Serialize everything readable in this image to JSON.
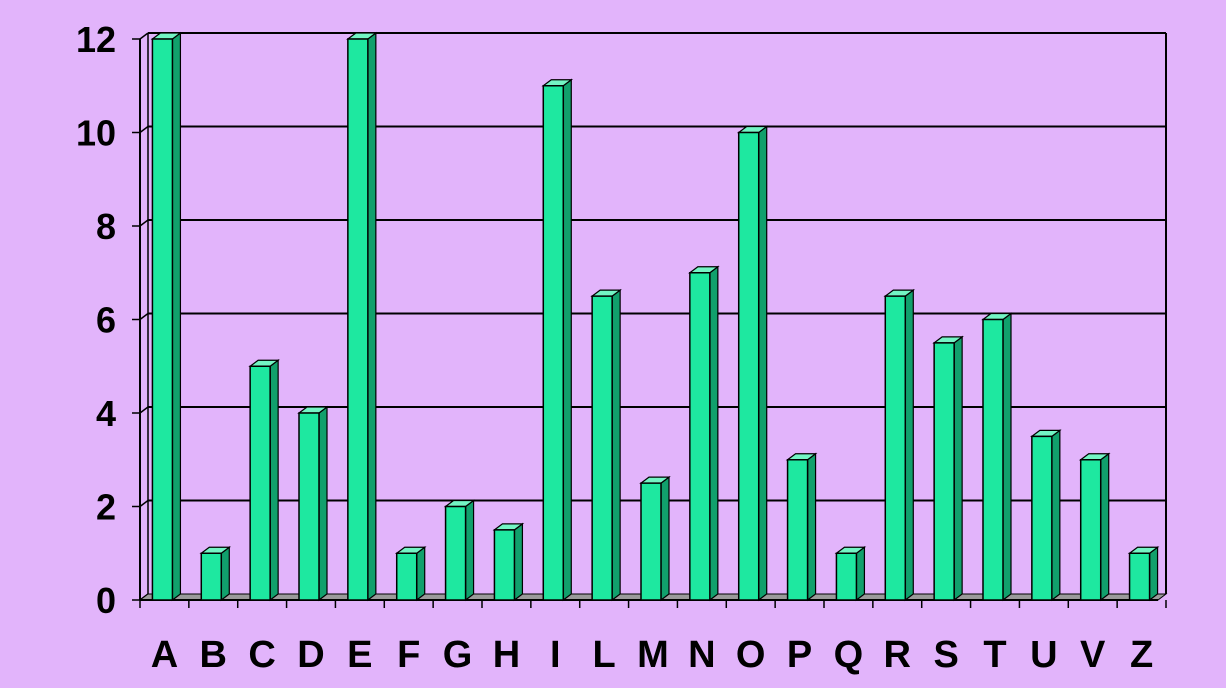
{
  "chart_data": {
    "type": "bar",
    "categories": [
      "A",
      "B",
      "C",
      "D",
      "E",
      "F",
      "G",
      "H",
      "I",
      "L",
      "M",
      "N",
      "O",
      "P",
      "Q",
      "R",
      "S",
      "T",
      "U",
      "V",
      "Z"
    ],
    "series": [
      {
        "values": [
          12,
          1,
          5,
          4,
          12,
          1,
          2,
          1.5,
          11,
          6.5,
          2.5,
          7,
          10,
          3,
          1,
          6.5,
          5.5,
          6,
          3.5,
          3,
          1
        ]
      }
    ],
    "title": "",
    "xlabel": "",
    "ylabel": "",
    "ylim": [
      0,
      12
    ],
    "yticks": [
      0,
      2,
      4,
      6,
      8,
      10,
      12
    ],
    "grid": true,
    "legend": "none",
    "colors": {
      "background": "#e2b4fb",
      "bar_front": "#1ee8a0",
      "bar_side": "#11a06c",
      "bar_top": "#73f5c4",
      "gridline": "#000000"
    }
  }
}
